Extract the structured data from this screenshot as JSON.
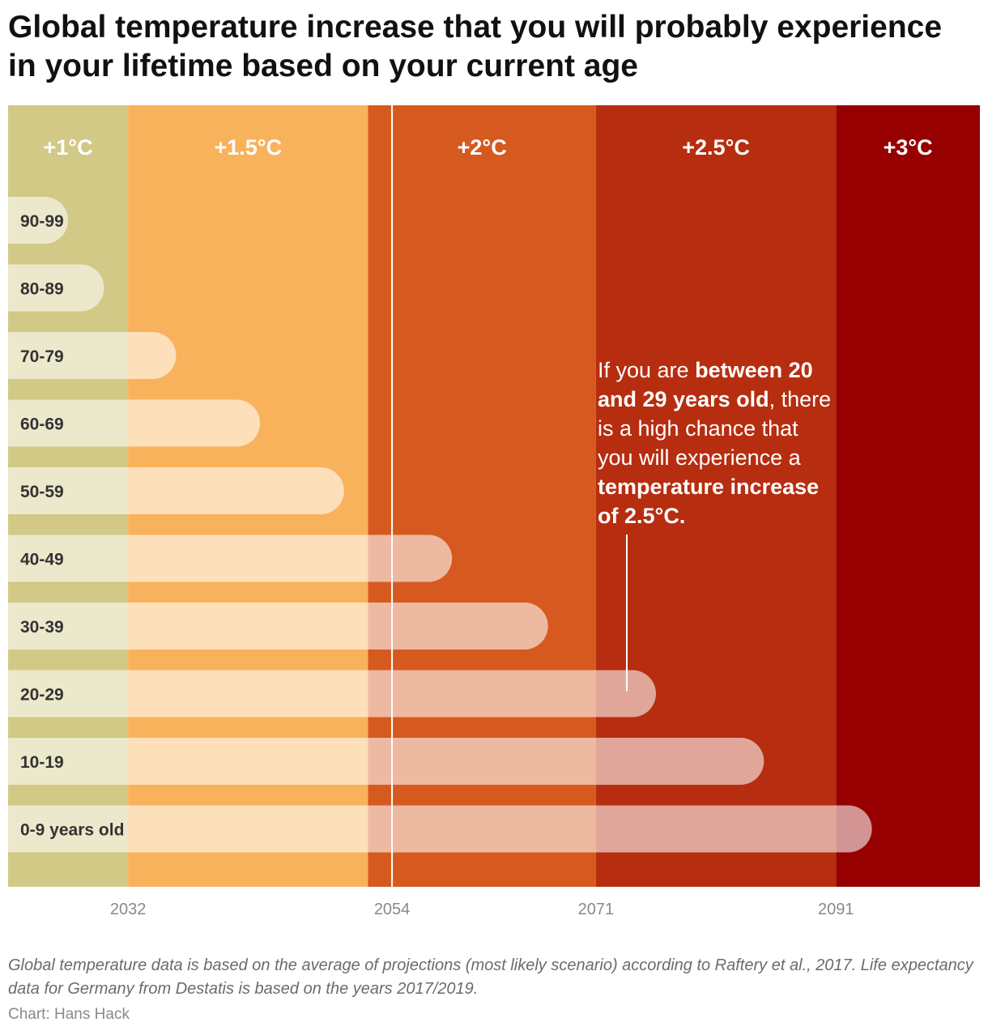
{
  "title": "Global temperature increase that you will probably experience in your lifetime based on your current age",
  "footnote": "Global temperature data is based on the average of projections (most likely scenario) according to Raftery et al., 2017. Life expectancy data for Germany from Destatis is based on the years 2017/2019.",
  "credit": "Chart: Hans Hack",
  "chart_data": {
    "type": "bar",
    "orientation": "horizontal",
    "x_range": [
      2022,
      2103
    ],
    "categories": [
      "90-99",
      "80-89",
      "70-79",
      "60-69",
      "50-59",
      "40-49",
      "30-39",
      "20-29",
      "10-19",
      "0-9 years old"
    ],
    "values": [
      2027,
      2030,
      2036,
      2043,
      2050,
      2059,
      2067,
      2076,
      2085,
      2094
    ],
    "x_ticks": [
      "2032",
      "2054",
      "2071",
      "2091"
    ],
    "bands": [
      {
        "label": "+1°C",
        "from": 2022,
        "to": 2032,
        "color": "#d1c985"
      },
      {
        "label": "+1.5°C",
        "from": 2032,
        "to": 2052,
        "color": "#f9b25c"
      },
      {
        "label": "+2°C",
        "from": 2052,
        "to": 2071,
        "color": "#d65a1f"
      },
      {
        "label": "+2.5°C",
        "from": 2071,
        "to": 2091,
        "color": "#b72d10"
      },
      {
        "label": "+3°C",
        "from": 2091,
        "to": 2103,
        "color": "#960000"
      }
    ],
    "reference_line": 2054,
    "annotation": {
      "category": "20-29",
      "lines": [
        [
          {
            "t": "If you are ",
            "b": false
          },
          {
            "t": "between 20",
            "b": true
          }
        ],
        [
          {
            "t": "and 29 years old",
            "b": true
          },
          {
            "t": ", there",
            "b": false
          }
        ],
        [
          {
            "t": "is a high chance that",
            "b": false
          }
        ],
        [
          {
            "t": "you will experience a",
            "b": false
          }
        ],
        [
          {
            "t": "temperature increase",
            "b": true
          }
        ],
        [
          {
            "t": "of 2.5°C.",
            "b": true
          }
        ]
      ]
    }
  }
}
